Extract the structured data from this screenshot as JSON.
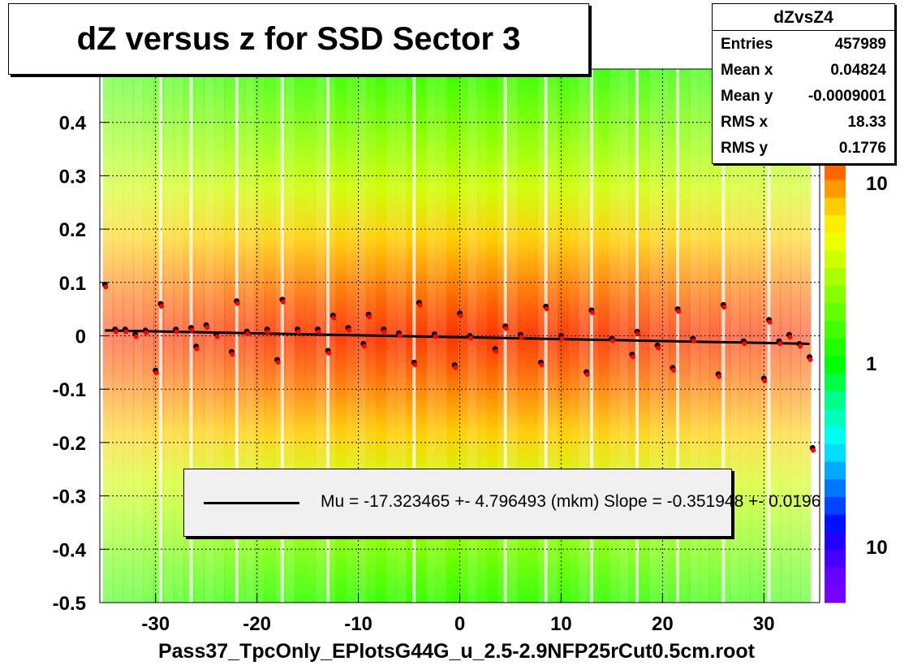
{
  "title": "dZ versus  z for SSD Sector 3",
  "stats": {
    "name": "dZvsZ4",
    "rows": [
      {
        "label": "Entries",
        "value": "457989"
      },
      {
        "label": "Mean x",
        "value": "0.04824"
      },
      {
        "label": "Mean y",
        "value": "-0.0009001"
      },
      {
        "label": "RMS x",
        "value": "18.33"
      },
      {
        "label": "RMS y",
        "value": "0.1776"
      }
    ]
  },
  "legend": {
    "text": "Mu = -17.323465 +- 4.796493 (mkm) Slope = -0.351948 +- 0.0196"
  },
  "colorbar_labels": [
    "10",
    "1",
    "10"
  ],
  "chart_data": {
    "type": "heatmap",
    "title": "dZ versus  z for SSD Sector 3",
    "xlabel": "Pass37_TpcOnly_EPlotsG44G_u_2.5-2.9NFP25rCut0.5cm.root",
    "ylabel": "",
    "xlim": [
      -35.5,
      35.5
    ],
    "ylim": [
      -0.5,
      0.5
    ],
    "xticks": [
      "-30",
      "-20",
      "-10",
      "0",
      "10",
      "20",
      "30"
    ],
    "yticks": [
      "-0.5",
      "-0.4",
      "-0.3",
      "-0.2",
      "-0.1",
      "0",
      "0.1",
      "0.2",
      "0.3",
      "0.4"
    ],
    "grid": true,
    "fit_line": {
      "y_at_xmin": 0.01,
      "y_at_xmax": -0.015
    },
    "profile_points": [
      {
        "x": -35,
        "y": 0.096
      },
      {
        "x": -34,
        "y": 0.012
      },
      {
        "x": -33,
        "y": 0.012
      },
      {
        "x": -32,
        "y": 0.003
      },
      {
        "x": -31,
        "y": 0.01
      },
      {
        "x": -30,
        "y": -0.065
      },
      {
        "x": -29.5,
        "y": 0.06
      },
      {
        "x": -28,
        "y": 0.012
      },
      {
        "x": -26.5,
        "y": 0.015
      },
      {
        "x": -26,
        "y": -0.02
      },
      {
        "x": -25,
        "y": 0.02
      },
      {
        "x": -24,
        "y": 0.003
      },
      {
        "x": -22.5,
        "y": -0.03
      },
      {
        "x": -22,
        "y": 0.065
      },
      {
        "x": -21,
        "y": 0.008
      },
      {
        "x": -19,
        "y": 0.012
      },
      {
        "x": -18,
        "y": -0.045
      },
      {
        "x": -17.5,
        "y": 0.068
      },
      {
        "x": -16,
        "y": 0.012
      },
      {
        "x": -14,
        "y": 0.012
      },
      {
        "x": -13,
        "y": -0.028
      },
      {
        "x": -12.5,
        "y": 0.038
      },
      {
        "x": -11,
        "y": 0.015
      },
      {
        "x": -9.5,
        "y": -0.015
      },
      {
        "x": -9,
        "y": 0.04
      },
      {
        "x": -7.5,
        "y": 0.012
      },
      {
        "x": -6,
        "y": 0.005
      },
      {
        "x": -4.5,
        "y": -0.05
      },
      {
        "x": -4,
        "y": 0.062
      },
      {
        "x": -2.5,
        "y": 0.003
      },
      {
        "x": -0.5,
        "y": -0.055
      },
      {
        "x": 0,
        "y": 0.042
      },
      {
        "x": 1,
        "y": 0.0
      },
      {
        "x": 3.5,
        "y": -0.025
      },
      {
        "x": 4.5,
        "y": 0.018
      },
      {
        "x": 6,
        "y": 0.002
      },
      {
        "x": 8,
        "y": -0.05
      },
      {
        "x": 8.5,
        "y": 0.055
      },
      {
        "x": 10,
        "y": 0.0
      },
      {
        "x": 12.5,
        "y": -0.068
      },
      {
        "x": 13,
        "y": 0.048
      },
      {
        "x": 15,
        "y": -0.005
      },
      {
        "x": 17,
        "y": -0.035
      },
      {
        "x": 17.5,
        "y": 0.008
      },
      {
        "x": 19.5,
        "y": -0.018
      },
      {
        "x": 21,
        "y": -0.06
      },
      {
        "x": 21.5,
        "y": 0.05
      },
      {
        "x": 23,
        "y": -0.005
      },
      {
        "x": 25.5,
        "y": -0.072
      },
      {
        "x": 26,
        "y": 0.058
      },
      {
        "x": 28,
        "y": -0.01
      },
      {
        "x": 30,
        "y": -0.08
      },
      {
        "x": 30.5,
        "y": 0.03
      },
      {
        "x": 31.5,
        "y": -0.01
      },
      {
        "x": 32.5,
        "y": 0.002
      },
      {
        "x": 33.5,
        "y": -0.015
      },
      {
        "x": 34.5,
        "y": -0.04
      },
      {
        "x": 34.8,
        "y": -0.21
      }
    ]
  },
  "colors": {
    "frame": "#000000",
    "low": "#00ff00",
    "mid": "#ffff00",
    "high": "#ff3300",
    "gap_white": "#ffffff",
    "fit_line": "#000000",
    "profile_red": "#ff0000",
    "profile_black": "#000000"
  }
}
